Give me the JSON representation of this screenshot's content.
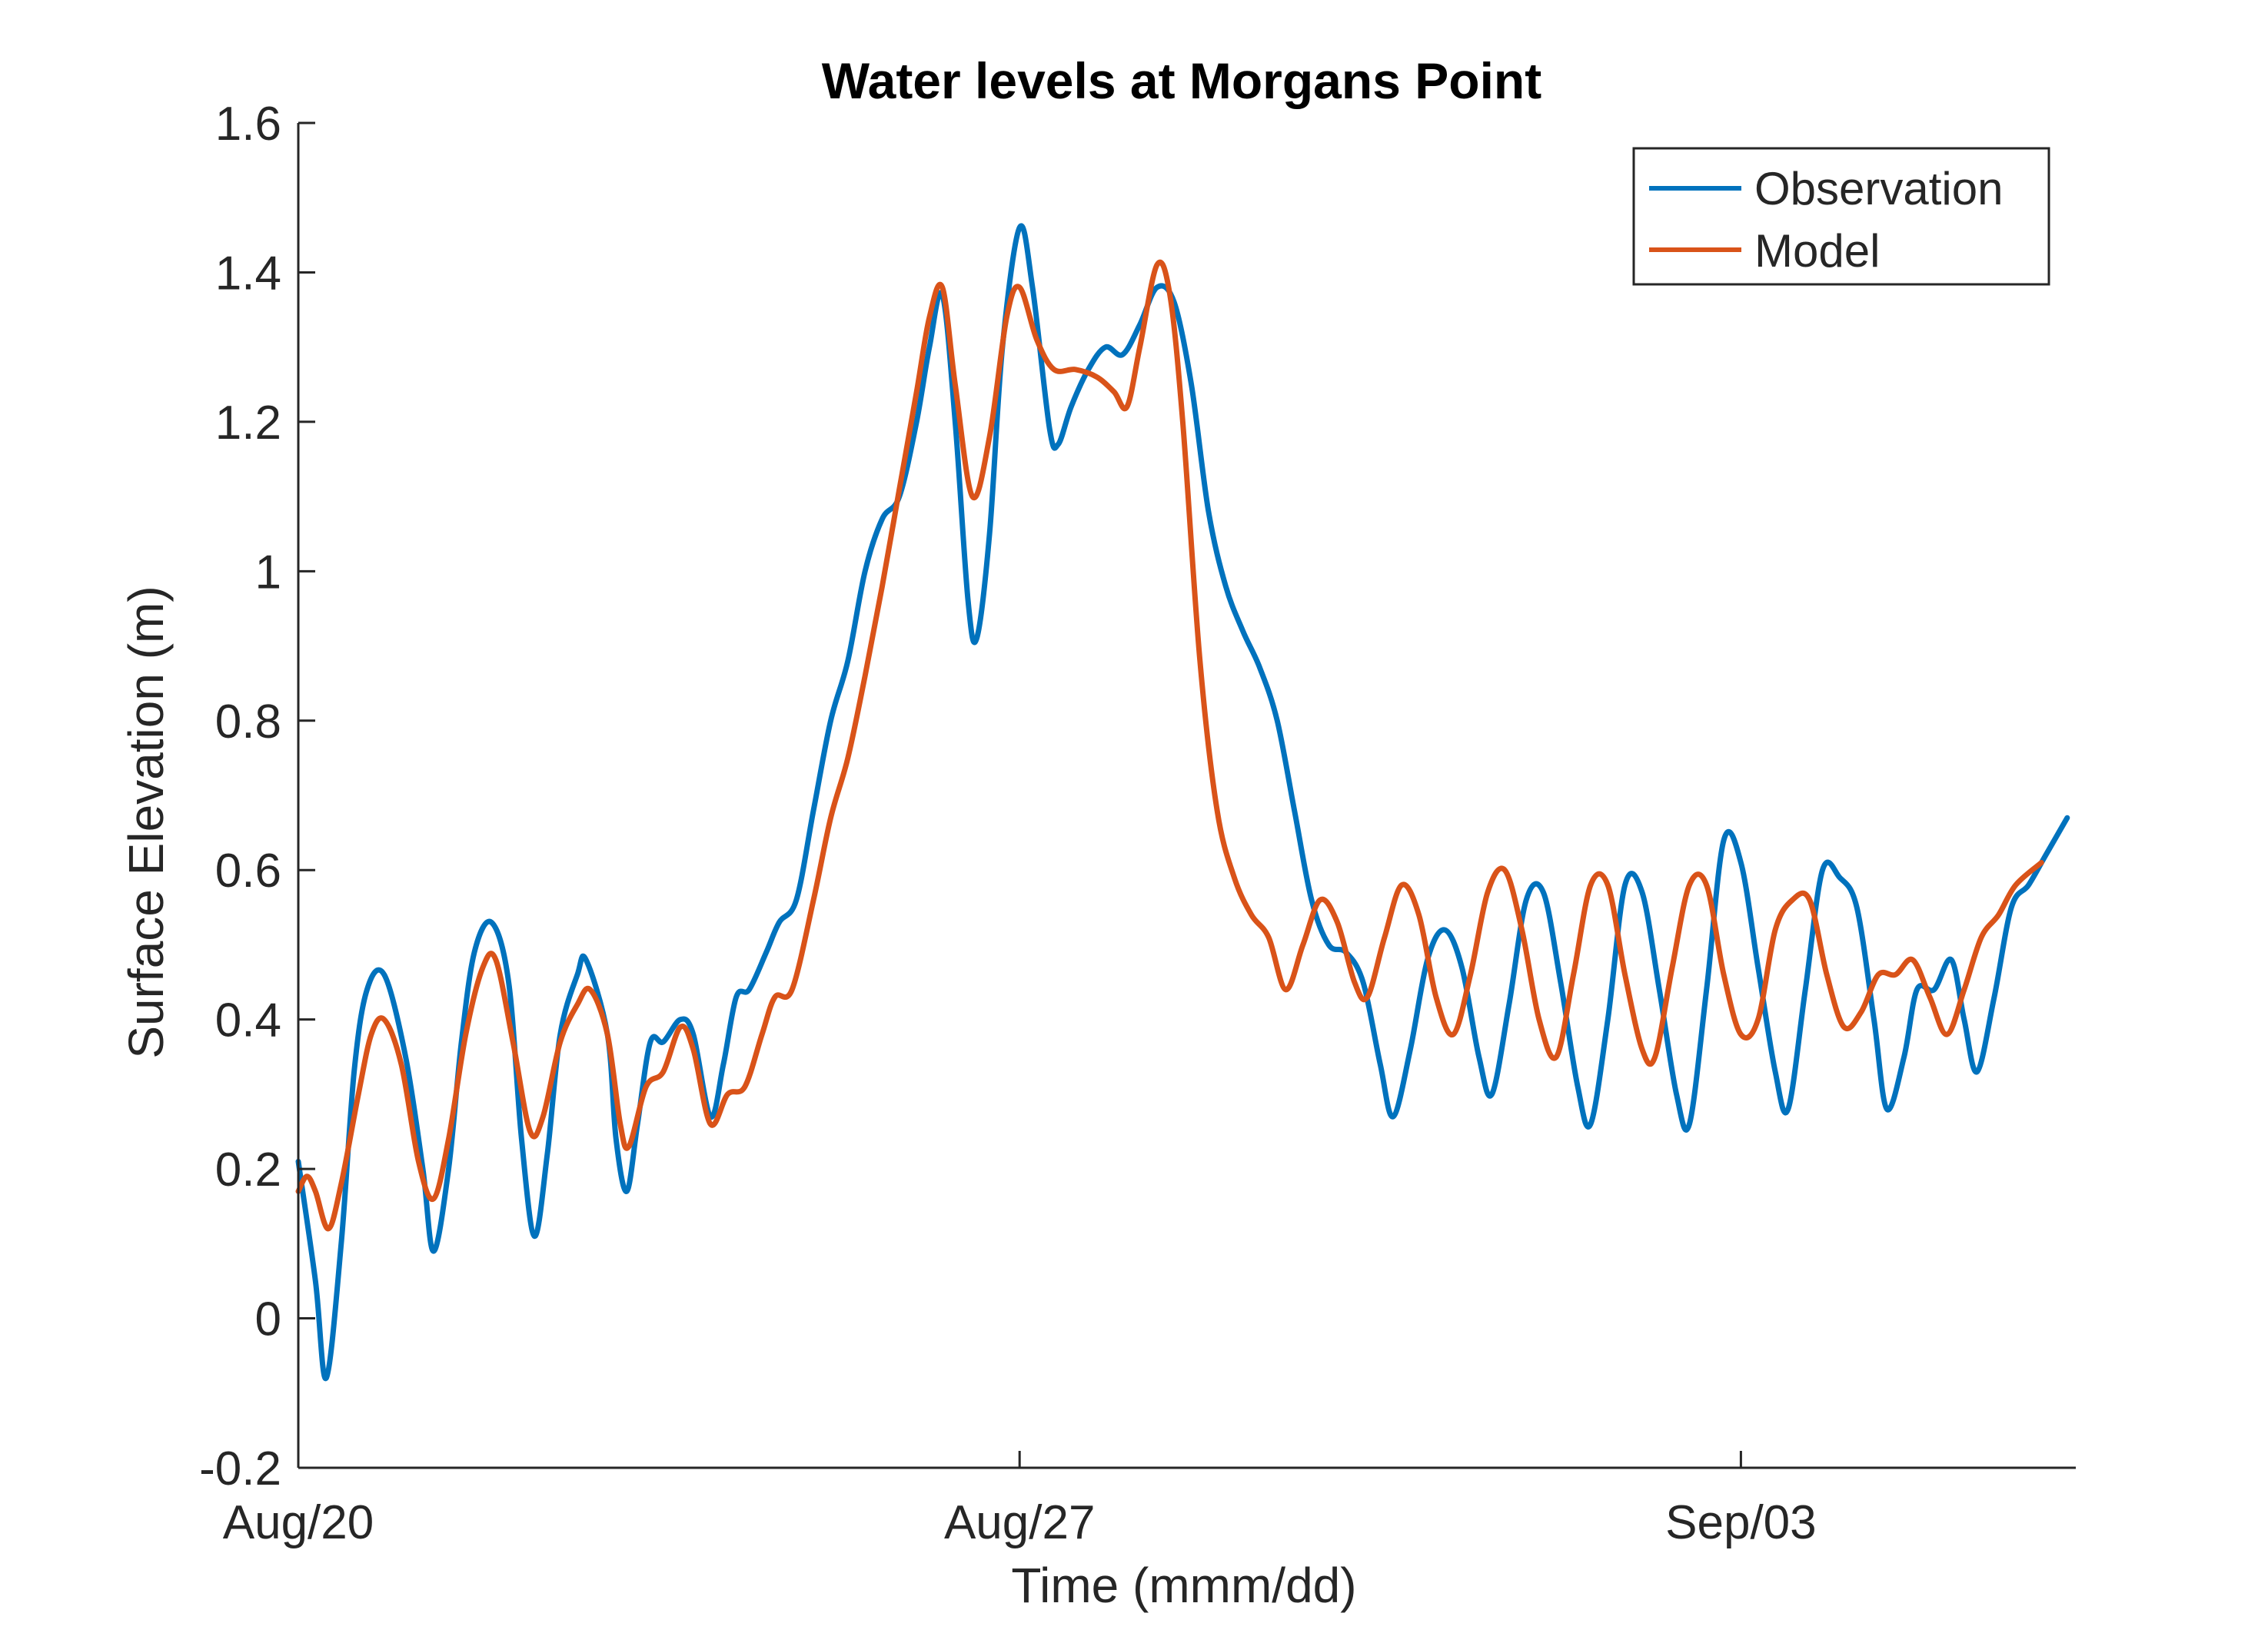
{
  "chart_data": {
    "type": "line",
    "title": "Water levels at Morgans Point",
    "xlabel": "Time (mmm/dd)",
    "ylabel": "Surface Elevation (m)",
    "xlim": [
      "2017-08-20T00:00",
      "2017-09-06T06:00"
    ],
    "ylim": [
      -0.2,
      1.6
    ],
    "yticks": [
      -0.2,
      0,
      0.2,
      0.4,
      0.6,
      0.8,
      1,
      1.2,
      1.4,
      1.6
    ],
    "ytick_labels": [
      "-0.2",
      "0",
      "0.2",
      "0.4",
      "0.6",
      "0.8",
      "1",
      "1.2",
      "1.4",
      "1.6"
    ],
    "xticks": [
      "2017-08-20T00:00",
      "2017-08-27T00:00",
      "2017-09-03T00:00"
    ],
    "xtick_labels": [
      "Aug/20",
      "Aug/27",
      "Sep/03"
    ],
    "grid": false,
    "legend_position": "top-right",
    "series": [
      {
        "name": "Observation",
        "color": "#0072BD",
        "points": [
          [
            "2017-08-20T00:00",
            0.21
          ],
          [
            "2017-08-20T04:00",
            0.05
          ],
          [
            "2017-08-20T06:30",
            -0.08
          ],
          [
            "2017-08-20T10:00",
            0.1
          ],
          [
            "2017-08-20T13:00",
            0.33
          ],
          [
            "2017-08-20T16:00",
            0.44
          ],
          [
            "2017-08-20T20:00",
            0.46
          ],
          [
            "2017-08-21T01:00",
            0.35
          ],
          [
            "2017-08-21T05:00",
            0.2
          ],
          [
            "2017-08-21T07:30",
            0.09
          ],
          [
            "2017-08-21T11:00",
            0.2
          ],
          [
            "2017-08-21T14:00",
            0.37
          ],
          [
            "2017-08-21T17:00",
            0.49
          ],
          [
            "2017-08-21T21:00",
            0.53
          ],
          [
            "2017-08-22T01:00",
            0.45
          ],
          [
            "2017-08-22T04:00",
            0.24
          ],
          [
            "2017-08-22T07:00",
            0.11
          ],
          [
            "2017-08-22T10:00",
            0.22
          ],
          [
            "2017-08-22T13:00",
            0.38
          ],
          [
            "2017-08-22T17:00",
            0.46
          ],
          [
            "2017-08-22T19:00",
            0.48
          ],
          [
            "2017-08-23T00:00",
            0.38
          ],
          [
            "2017-08-23T02:00",
            0.24
          ],
          [
            "2017-08-23T04:30",
            0.17
          ],
          [
            "2017-08-23T07:00",
            0.26
          ],
          [
            "2017-08-23T10:00",
            0.37
          ],
          [
            "2017-08-23T13:00",
            0.37
          ],
          [
            "2017-08-23T17:00",
            0.4
          ],
          [
            "2017-08-23T20:00",
            0.38
          ],
          [
            "2017-08-24T00:00",
            0.27
          ],
          [
            "2017-08-24T03:00",
            0.34
          ],
          [
            "2017-08-24T06:00",
            0.43
          ],
          [
            "2017-08-24T09:00",
            0.44
          ],
          [
            "2017-08-24T13:00",
            0.49
          ],
          [
            "2017-08-24T16:00",
            0.53
          ],
          [
            "2017-08-24T20:00",
            0.56
          ],
          [
            "2017-08-25T00:00",
            0.68
          ],
          [
            "2017-08-25T04:00",
            0.8
          ],
          [
            "2017-08-25T08:00",
            0.88
          ],
          [
            "2017-08-25T12:00",
            1.0
          ],
          [
            "2017-08-25T16:00",
            1.07
          ],
          [
            "2017-08-25T20:00",
            1.1
          ],
          [
            "2017-08-26T00:00",
            1.2
          ],
          [
            "2017-08-26T03:00",
            1.3
          ],
          [
            "2017-08-26T06:00",
            1.37
          ],
          [
            "2017-08-26T09:00",
            1.2
          ],
          [
            "2017-08-26T12:00",
            0.96
          ],
          [
            "2017-08-26T14:00",
            0.91
          ],
          [
            "2017-08-26T17:00",
            1.05
          ],
          [
            "2017-08-26T20:00",
            1.3
          ],
          [
            "2017-08-27T00:00",
            1.46
          ],
          [
            "2017-08-27T03:00",
            1.38
          ],
          [
            "2017-08-27T07:00",
            1.19
          ],
          [
            "2017-08-27T09:00",
            1.17
          ],
          [
            "2017-08-27T12:00",
            1.22
          ],
          [
            "2017-08-27T16:00",
            1.27
          ],
          [
            "2017-08-27T20:00",
            1.3
          ],
          [
            "2017-08-28T00:00",
            1.29
          ],
          [
            "2017-08-28T04:00",
            1.33
          ],
          [
            "2017-08-28T08:00",
            1.38
          ],
          [
            "2017-08-28T12:00",
            1.36
          ],
          [
            "2017-08-28T16:00",
            1.25
          ],
          [
            "2017-08-28T20:00",
            1.08
          ],
          [
            "2017-08-29T00:00",
            0.98
          ],
          [
            "2017-08-29T04:00",
            0.92
          ],
          [
            "2017-08-29T08:00",
            0.87
          ],
          [
            "2017-08-29T12:00",
            0.8
          ],
          [
            "2017-08-29T16:00",
            0.68
          ],
          [
            "2017-08-29T20:00",
            0.56
          ],
          [
            "2017-08-30T00:00",
            0.5
          ],
          [
            "2017-08-30T04:00",
            0.49
          ],
          [
            "2017-08-30T08:00",
            0.45
          ],
          [
            "2017-08-30T12:00",
            0.34
          ],
          [
            "2017-08-30T15:00",
            0.27
          ],
          [
            "2017-08-30T19:00",
            0.36
          ],
          [
            "2017-08-30T23:00",
            0.48
          ],
          [
            "2017-08-31T03:00",
            0.52
          ],
          [
            "2017-08-31T07:00",
            0.47
          ],
          [
            "2017-08-31T11:00",
            0.35
          ],
          [
            "2017-08-31T14:00",
            0.3
          ],
          [
            "2017-08-31T18:00",
            0.42
          ],
          [
            "2017-08-31T22:00",
            0.56
          ],
          [
            "2017-09-01T02:00",
            0.57
          ],
          [
            "2017-09-01T06:00",
            0.45
          ],
          [
            "2017-09-01T10:00",
            0.31
          ],
          [
            "2017-09-01T13:00",
            0.26
          ],
          [
            "2017-09-01T17:00",
            0.4
          ],
          [
            "2017-09-01T21:00",
            0.58
          ],
          [
            "2017-09-02T01:00",
            0.57
          ],
          [
            "2017-09-02T05:00",
            0.44
          ],
          [
            "2017-09-02T09:00",
            0.3
          ],
          [
            "2017-09-02T12:00",
            0.26
          ],
          [
            "2017-09-02T16:00",
            0.44
          ],
          [
            "2017-09-02T20:00",
            0.64
          ],
          [
            "2017-09-03T00:00",
            0.61
          ],
          [
            "2017-09-03T04:00",
            0.47
          ],
          [
            "2017-09-03T08:00",
            0.33
          ],
          [
            "2017-09-03T11:00",
            0.28
          ],
          [
            "2017-09-03T15:00",
            0.44
          ],
          [
            "2017-09-03T19:00",
            0.6
          ],
          [
            "2017-09-03T23:00",
            0.59
          ],
          [
            "2017-09-04T03:00",
            0.55
          ],
          [
            "2017-09-04T07:00",
            0.4
          ],
          [
            "2017-09-04T10:00",
            0.28
          ],
          [
            "2017-09-04T14:00",
            0.35
          ],
          [
            "2017-09-04T17:00",
            0.44
          ],
          [
            "2017-09-04T21:00",
            0.44
          ],
          [
            "2017-09-05T01:00",
            0.48
          ],
          [
            "2017-09-05T04:00",
            0.4
          ],
          [
            "2017-09-05T07:00",
            0.33
          ],
          [
            "2017-09-05T11:00",
            0.43
          ],
          [
            "2017-09-05T15:00",
            0.55
          ],
          [
            "2017-09-05T19:00",
            0.58
          ],
          [
            "2017-09-05T23:00",
            0.62
          ],
          [
            "2017-09-06T04:00",
            0.67
          ]
        ]
      },
      {
        "name": "Model",
        "color": "#D95319",
        "points": [
          [
            "2017-08-20T00:00",
            0.17
          ],
          [
            "2017-08-20T02:00",
            0.19
          ],
          [
            "2017-08-20T04:00",
            0.17
          ],
          [
            "2017-08-20T07:00",
            0.12
          ],
          [
            "2017-08-20T10:00",
            0.18
          ],
          [
            "2017-08-20T14:00",
            0.3
          ],
          [
            "2017-08-20T17:00",
            0.38
          ],
          [
            "2017-08-20T20:00",
            0.4
          ],
          [
            "2017-08-21T00:00",
            0.34
          ],
          [
            "2017-08-21T04:00",
            0.21
          ],
          [
            "2017-08-21T07:30",
            0.16
          ],
          [
            "2017-08-21T11:00",
            0.24
          ],
          [
            "2017-08-21T15:00",
            0.38
          ],
          [
            "2017-08-21T19:00",
            0.47
          ],
          [
            "2017-08-21T22:00",
            0.48
          ],
          [
            "2017-08-22T02:00",
            0.37
          ],
          [
            "2017-08-22T06:00",
            0.25
          ],
          [
            "2017-08-22T09:00",
            0.27
          ],
          [
            "2017-08-22T13:00",
            0.37
          ],
          [
            "2017-08-22T17:00",
            0.42
          ],
          [
            "2017-08-22T20:00",
            0.44
          ],
          [
            "2017-08-23T00:00",
            0.38
          ],
          [
            "2017-08-23T03:00",
            0.26
          ],
          [
            "2017-08-23T05:00",
            0.23
          ],
          [
            "2017-08-23T09:00",
            0.31
          ],
          [
            "2017-08-23T13:00",
            0.33
          ],
          [
            "2017-08-23T17:00",
            0.39
          ],
          [
            "2017-08-23T20:00",
            0.36
          ],
          [
            "2017-08-24T00:00",
            0.26
          ],
          [
            "2017-08-24T04:00",
            0.3
          ],
          [
            "2017-08-24T08:00",
            0.31
          ],
          [
            "2017-08-24T12:00",
            0.38
          ],
          [
            "2017-08-24T15:00",
            0.43
          ],
          [
            "2017-08-24T19:00",
            0.44
          ],
          [
            "2017-08-25T00:00",
            0.56
          ],
          [
            "2017-08-25T04:00",
            0.67
          ],
          [
            "2017-08-25T08:00",
            0.75
          ],
          [
            "2017-08-25T12:00",
            0.86
          ],
          [
            "2017-08-25T16:00",
            0.98
          ],
          [
            "2017-08-25T20:00",
            1.11
          ],
          [
            "2017-08-26T00:00",
            1.24
          ],
          [
            "2017-08-26T03:00",
            1.34
          ],
          [
            "2017-08-26T06:00",
            1.38
          ],
          [
            "2017-08-26T09:00",
            1.25
          ],
          [
            "2017-08-26T13:00",
            1.1
          ],
          [
            "2017-08-26T17:00",
            1.18
          ],
          [
            "2017-08-26T21:00",
            1.34
          ],
          [
            "2017-08-27T00:00",
            1.38
          ],
          [
            "2017-08-27T04:00",
            1.31
          ],
          [
            "2017-08-27T08:00",
            1.27
          ],
          [
            "2017-08-27T13:00",
            1.27
          ],
          [
            "2017-08-27T18:00",
            1.26
          ],
          [
            "2017-08-27T22:00",
            1.24
          ],
          [
            "2017-08-28T01:00",
            1.22
          ],
          [
            "2017-08-28T04:00",
            1.3
          ],
          [
            "2017-08-28T08:00",
            1.41
          ],
          [
            "2017-08-28T11:00",
            1.37
          ],
          [
            "2017-08-28T14:00",
            1.2
          ],
          [
            "2017-08-28T18:00",
            0.88
          ],
          [
            "2017-08-28T22:00",
            0.68
          ],
          [
            "2017-08-29T02:00",
            0.59
          ],
          [
            "2017-08-29T06:00",
            0.54
          ],
          [
            "2017-08-29T10:00",
            0.51
          ],
          [
            "2017-08-29T14:00",
            0.44
          ],
          [
            "2017-08-29T18:00",
            0.5
          ],
          [
            "2017-08-29T22:00",
            0.56
          ],
          [
            "2017-08-30T02:00",
            0.53
          ],
          [
            "2017-08-30T06:00",
            0.45
          ],
          [
            "2017-08-30T09:00",
            0.43
          ],
          [
            "2017-08-30T13:00",
            0.51
          ],
          [
            "2017-08-30T17:00",
            0.58
          ],
          [
            "2017-08-30T21:00",
            0.54
          ],
          [
            "2017-08-31T01:00",
            0.43
          ],
          [
            "2017-08-31T05:00",
            0.38
          ],
          [
            "2017-08-31T09:00",
            0.46
          ],
          [
            "2017-08-31T13:00",
            0.57
          ],
          [
            "2017-08-31T17:00",
            0.6
          ],
          [
            "2017-08-31T21:00",
            0.52
          ],
          [
            "2017-09-01T01:00",
            0.4
          ],
          [
            "2017-09-01T05:00",
            0.35
          ],
          [
            "2017-09-01T09:00",
            0.46
          ],
          [
            "2017-09-01T13:00",
            0.58
          ],
          [
            "2017-09-01T17:00",
            0.58
          ],
          [
            "2017-09-01T21:00",
            0.46
          ],
          [
            "2017-09-02T01:00",
            0.36
          ],
          [
            "2017-09-02T04:00",
            0.35
          ],
          [
            "2017-09-02T08:00",
            0.47
          ],
          [
            "2017-09-02T12:00",
            0.58
          ],
          [
            "2017-09-02T16:00",
            0.58
          ],
          [
            "2017-09-02T20:00",
            0.46
          ],
          [
            "2017-09-03T00:00",
            0.38
          ],
          [
            "2017-09-03T04:00",
            0.4
          ],
          [
            "2017-09-03T08:00",
            0.52
          ],
          [
            "2017-09-03T12:00",
            0.56
          ],
          [
            "2017-09-03T16:00",
            0.56
          ],
          [
            "2017-09-03T20:00",
            0.46
          ],
          [
            "2017-09-04T00:00",
            0.39
          ],
          [
            "2017-09-04T04:00",
            0.41
          ],
          [
            "2017-09-04T08:00",
            0.46
          ],
          [
            "2017-09-04T12:00",
            0.46
          ],
          [
            "2017-09-04T16:00",
            0.48
          ],
          [
            "2017-09-04T20:00",
            0.43
          ],
          [
            "2017-09-05T00:00",
            0.38
          ],
          [
            "2017-09-05T04:00",
            0.44
          ],
          [
            "2017-09-05T08:00",
            0.51
          ],
          [
            "2017-09-05T12:00",
            0.54
          ],
          [
            "2017-09-05T16:00",
            0.58
          ],
          [
            "2017-09-05T22:00",
            0.61
          ]
        ]
      }
    ]
  }
}
